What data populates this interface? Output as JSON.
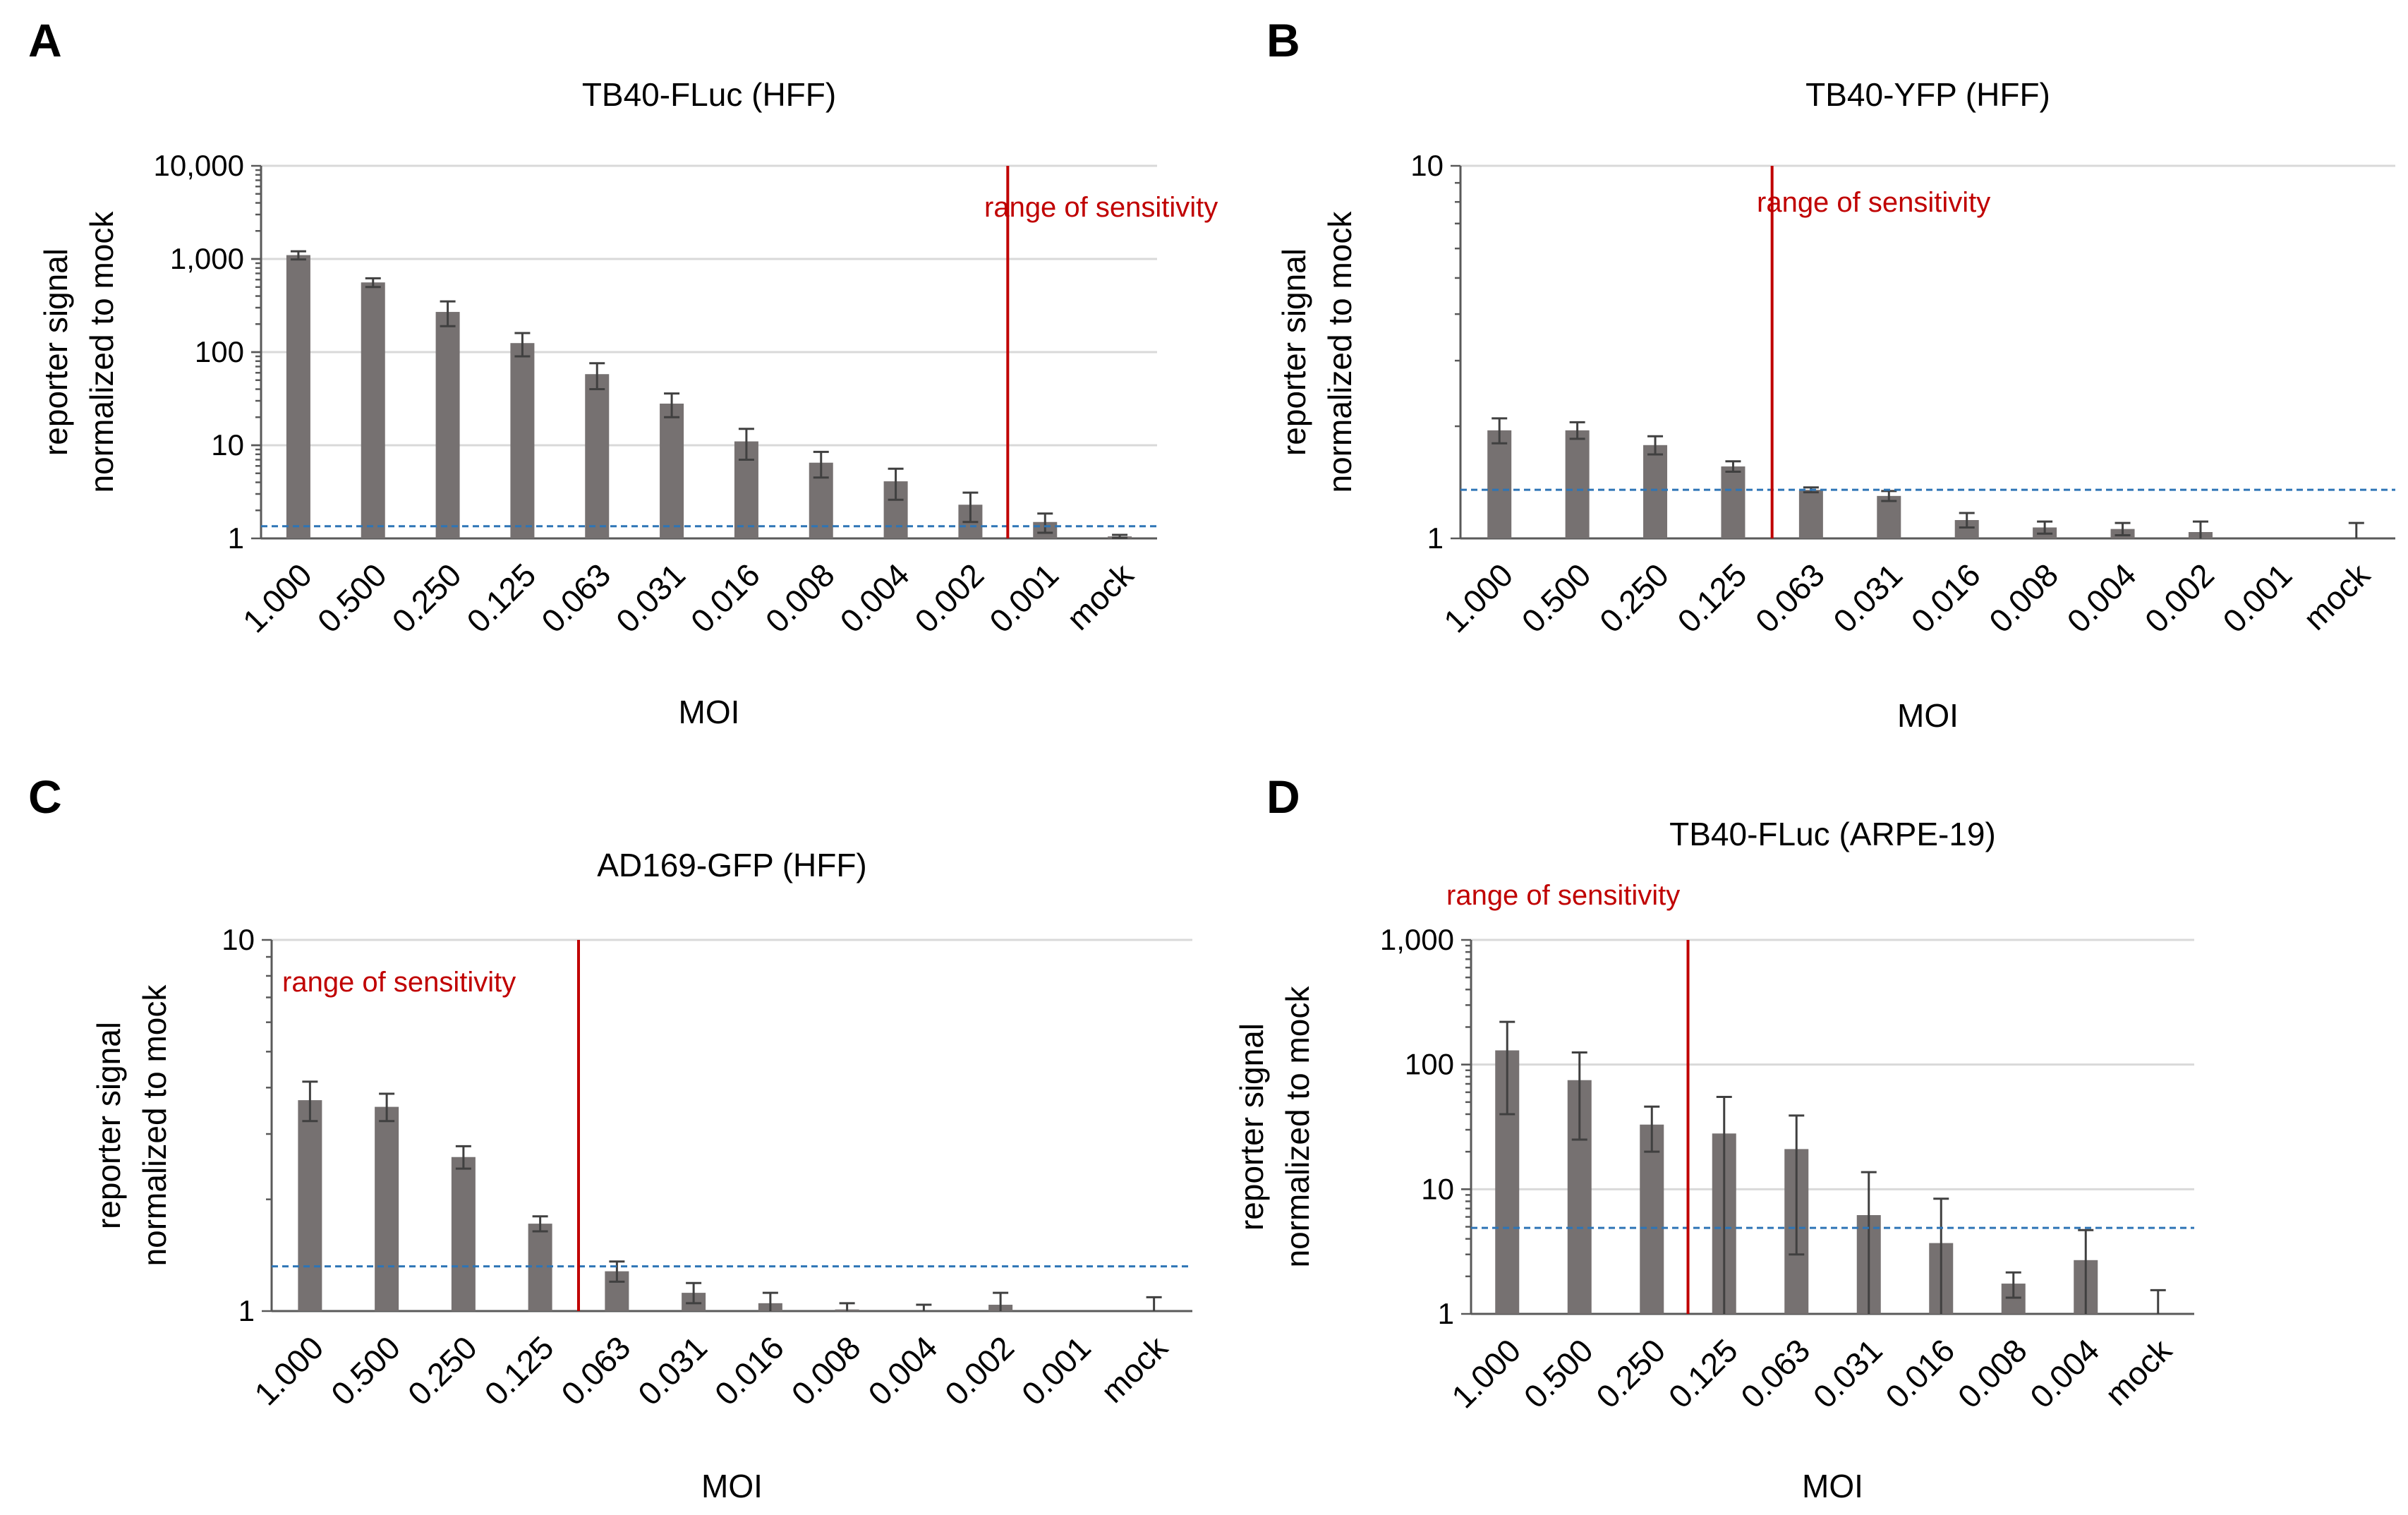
{
  "colors": {
    "bar": "#767171",
    "error_bar": "#404040",
    "gridline": "#d9d9d9",
    "axis": "#595959",
    "sensitivity_line": "#c00000",
    "threshold_line": "#2e75b6"
  },
  "chart_data": [
    {
      "type": "bar",
      "panel": "A",
      "title": "TB40-FLuc (HFF)",
      "xlabel": "MOI",
      "ylabel": [
        "reporter signal",
        "normalized to mock"
      ],
      "yscale": "log",
      "ylim": [
        1,
        10000
      ],
      "yticks": [
        1,
        10,
        100,
        1000,
        10000
      ],
      "ytick_labels": [
        "1",
        "10",
        "100",
        "1,000",
        "10,000"
      ],
      "categories": [
        "1.000",
        "0.500",
        "0.250",
        "0.125",
        "0.063",
        "0.031",
        "0.016",
        "0.008",
        "0.004",
        "0.002",
        "0.001",
        "mock"
      ],
      "values": [
        1100,
        560,
        270,
        125,
        58,
        28,
        11,
        6.5,
        4.1,
        2.3,
        1.5,
        1.05
      ],
      "errors": [
        110,
        60,
        80,
        35,
        18,
        8,
        4,
        2,
        1.5,
        0.8,
        0.35,
        0.04
      ],
      "threshold": 1.35,
      "sensitivity_after_index": 9.5,
      "sensitivity_label": "range of sensitivity",
      "sensitivity_label_side": "left"
    },
    {
      "type": "bar",
      "panel": "B",
      "title": "TB40-YFP (HFF)",
      "xlabel": "MOI",
      "ylabel": [
        "reporter signal",
        "normalized to mock"
      ],
      "yscale": "log",
      "ylim": [
        1,
        10
      ],
      "yticks": [
        1,
        10
      ],
      "ytick_labels": [
        "1",
        "10"
      ],
      "categories": [
        "1.000",
        "0.500",
        "0.250",
        "0.125",
        "0.063",
        "0.031",
        "0.016",
        "0.008",
        "0.004",
        "0.002",
        "0.001",
        "mock"
      ],
      "values": [
        1.95,
        1.95,
        1.78,
        1.56,
        1.35,
        1.3,
        1.12,
        1.07,
        1.06,
        1.04,
        1.0,
        1.0
      ],
      "errors": [
        0.15,
        0.1,
        0.1,
        0.05,
        0.02,
        0.04,
        0.05,
        0.04,
        0.04,
        0.07,
        0.0,
        0.1
      ],
      "threshold": 1.35,
      "sensitivity_after_index": 3.5,
      "sensitivity_label": "range of sensitivity",
      "sensitivity_label_side": "left"
    },
    {
      "type": "bar",
      "panel": "C",
      "title": "AD169-GFP (HFF)",
      "xlabel": "MOI",
      "ylabel": [
        "reporter signal",
        "normalized to mock"
      ],
      "yscale": "log",
      "ylim": [
        1,
        10
      ],
      "yticks": [
        1,
        10
      ],
      "ytick_labels": [
        "1",
        "10"
      ],
      "categories": [
        "1.000",
        "0.500",
        "0.250",
        "0.125",
        "0.063",
        "0.031",
        "0.016",
        "0.008",
        "0.004",
        "0.002",
        "0.001",
        "mock"
      ],
      "values": [
        3.7,
        3.55,
        2.6,
        1.72,
        1.28,
        1.12,
        1.05,
        1.01,
        1.0,
        1.04,
        1.0,
        1.0
      ],
      "errors": [
        0.45,
        0.3,
        0.18,
        0.08,
        0.08,
        0.07,
        0.07,
        0.04,
        0.04,
        0.08,
        0.0,
        0.09
      ],
      "threshold": 1.32,
      "sensitivity_after_index": 3.5,
      "sensitivity_label": "range of sensitivity",
      "sensitivity_label_side": "left"
    },
    {
      "type": "bar",
      "panel": "D",
      "title": "TB40-FLuc (ARPE-19)",
      "xlabel": "MOI",
      "ylabel": [
        "reporter signal",
        "normalized to mock"
      ],
      "yscale": "log",
      "ylim": [
        1,
        1000
      ],
      "yticks": [
        1,
        10,
        100,
        1000
      ],
      "ytick_labels": [
        "1",
        "10",
        "100",
        "1,000"
      ],
      "categories": [
        "1.000",
        "0.500",
        "0.250",
        "0.125",
        "0.063",
        "0.031",
        "0.016",
        "0.008",
        "0.004",
        "mock"
      ],
      "values": [
        130,
        75,
        33,
        28,
        21,
        6.2,
        3.7,
        1.75,
        2.7,
        1.0
      ],
      "errors": [
        90,
        50,
        13,
        27,
        18,
        7.5,
        4.7,
        0.4,
        2.0,
        0.55
      ],
      "threshold": 4.9,
      "sensitivity_after_index": 2.5,
      "sensitivity_label": "range of sensitivity",
      "sensitivity_label_side": "above"
    }
  ]
}
